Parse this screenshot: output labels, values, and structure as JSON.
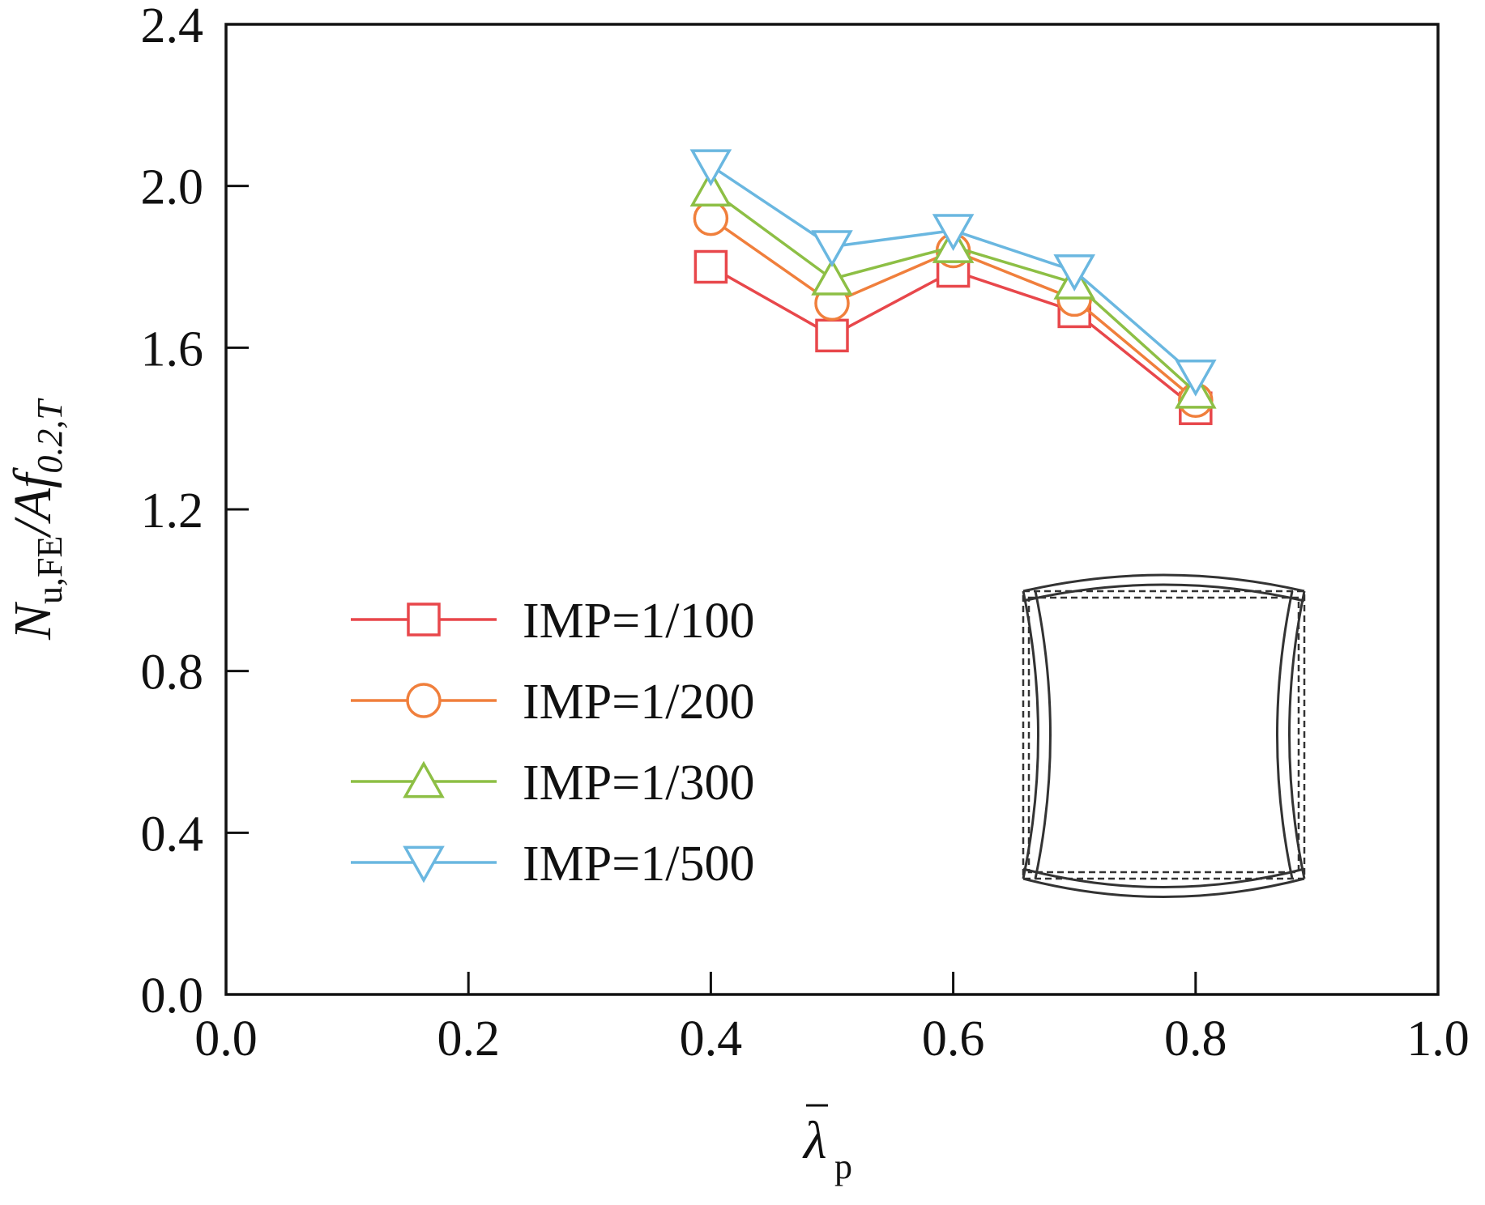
{
  "chart_data": {
    "type": "line",
    "xlim": [
      0.0,
      1.0
    ],
    "ylim": [
      0.0,
      2.4
    ],
    "x_ticks": [
      "0.0",
      "0.2",
      "0.4",
      "0.6",
      "0.8",
      "1.0"
    ],
    "y_ticks": [
      "0.0",
      "0.4",
      "0.8",
      "1.2",
      "1.6",
      "2.0",
      "2.4"
    ],
    "x_tick_values": [
      0.0,
      0.2,
      0.4,
      0.6,
      0.8,
      1.0
    ],
    "y_tick_values": [
      0.0,
      0.4,
      0.8,
      1.2,
      1.6,
      2.0,
      2.4
    ],
    "xlabel": {
      "base": "λ",
      "sub": "p"
    },
    "ylabel": {
      "n": "N",
      "n_sub": "u,FE",
      "mid": "/Af",
      "f_sub": "0.2,T"
    },
    "grid": false,
    "legend_position": "lower-left",
    "x": [
      0.4,
      0.5,
      0.6,
      0.7,
      0.8
    ],
    "series": [
      {
        "name": "IMP=1/100",
        "color": "#e8474b",
        "marker": "square",
        "values": [
          1.8,
          1.63,
          1.79,
          1.69,
          1.45
        ]
      },
      {
        "name": "IMP=1/200",
        "color": "#f07f3c",
        "marker": "circle",
        "values": [
          1.92,
          1.71,
          1.84,
          1.72,
          1.47
        ]
      },
      {
        "name": "IMP=1/300",
        "color": "#8dbf45",
        "marker": "triangle-up",
        "values": [
          1.99,
          1.77,
          1.85,
          1.76,
          1.49
        ]
      },
      {
        "name": "IMP=1/500",
        "color": "#6ab7e0",
        "marker": "triangle-down",
        "values": [
          2.05,
          1.85,
          1.89,
          1.79,
          1.53
        ]
      }
    ]
  }
}
